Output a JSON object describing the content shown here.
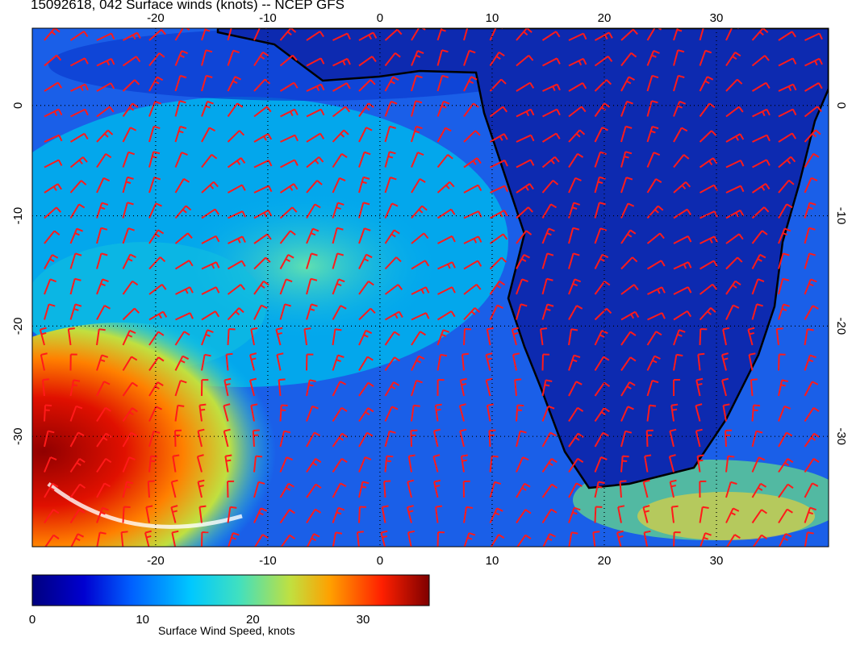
{
  "title": "15092618, 042 Surface winds (knots) -- NCEP GFS",
  "map": {
    "lon_range": [
      -31,
      40
    ],
    "lat_range": [
      7,
      -40
    ],
    "lon_ticks": [
      "-20",
      "-10",
      "0",
      "10",
      "20",
      "30"
    ],
    "lat_ticks": [
      "0",
      "-10",
      "-20",
      "-30"
    ],
    "gridlines": "dotted",
    "barb_color": "#ff1a1a",
    "coast_color": "#000000"
  },
  "colorbar": {
    "label": "Surface Wind Speed, knots",
    "ticks": [
      "0",
      "10",
      "20",
      "30"
    ],
    "range": [
      0,
      36
    ],
    "colors": [
      "#00007f",
      "#0000d0",
      "#0060ff",
      "#00c8ff",
      "#40e0c0",
      "#c0e040",
      "#ffa000",
      "#ff2000",
      "#7f0000"
    ]
  }
}
